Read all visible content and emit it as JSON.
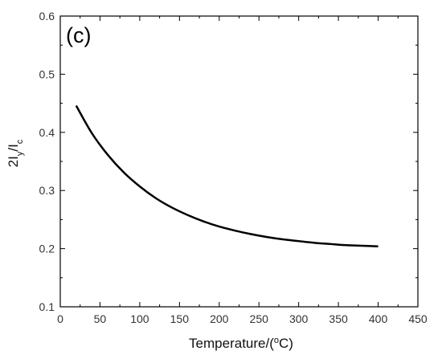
{
  "chart_data": {
    "type": "line",
    "panel_label": "(c)",
    "xlabel": {
      "prefix": "Temperature/(",
      "sup": "o",
      "suffix": "C)"
    },
    "ylabel": {
      "prefix": "2I",
      "sub1": "y",
      "middle": "/I",
      "sub2": "c"
    },
    "xlim": [
      0,
      450
    ],
    "ylim": [
      0.1,
      0.6
    ],
    "xticks": [
      0,
      50,
      100,
      150,
      200,
      250,
      300,
      350,
      400,
      450
    ],
    "yticks": [
      0.1,
      0.2,
      0.3,
      0.4,
      0.5,
      0.6
    ],
    "xtick_labels": [
      "0",
      "50",
      "100",
      "150",
      "200",
      "250",
      "300",
      "350",
      "400",
      "450"
    ],
    "ytick_labels": [
      "0.1",
      "0.2",
      "0.3",
      "0.4",
      "0.5",
      "0.6"
    ],
    "grid": false,
    "series": [
      {
        "color": "#000000",
        "x": [
          20,
          40,
          60,
          80,
          100,
          120,
          140,
          160,
          180,
          200,
          220,
          240,
          260,
          280,
          300,
          320,
          340,
          360,
          380,
          400
        ],
        "y": [
          0.446,
          0.398,
          0.361,
          0.331,
          0.307,
          0.287,
          0.271,
          0.258,
          0.247,
          0.238,
          0.231,
          0.225,
          0.22,
          0.216,
          0.213,
          0.21,
          0.208,
          0.206,
          0.205,
          0.204
        ]
      }
    ]
  }
}
